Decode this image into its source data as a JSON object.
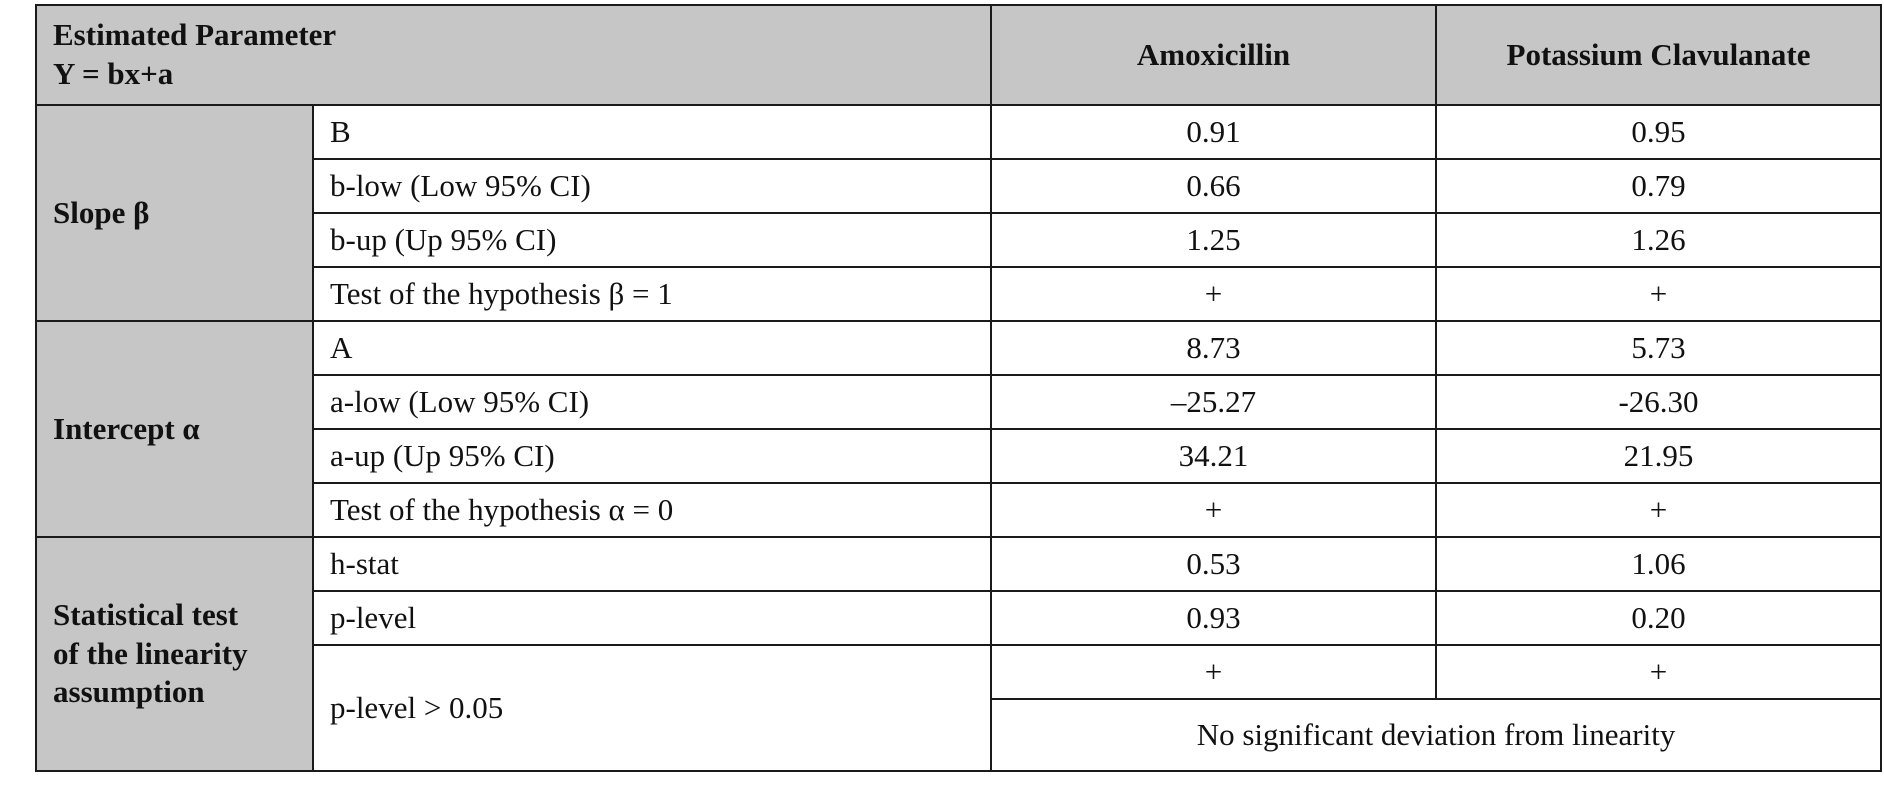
{
  "table": {
    "header": {
      "param_line1": "Estimated Parameter",
      "param_line2": "Y = bx+a",
      "col_amox": "Amoxicillin",
      "col_potassium": "Potassium Clavulanate"
    },
    "groups": [
      {
        "label": "Slope β",
        "rows": [
          {
            "name": "B",
            "amox": "0.91",
            "potassium": "0.95"
          },
          {
            "name": "b-low (Low 95% CI)",
            "amox": "0.66",
            "potassium": "0.79"
          },
          {
            "name": "b-up (Up 95% CI)",
            "amox": "1.25",
            "potassium": "1.26"
          },
          {
            "name": "Test of the hypothesis β = 1",
            "amox": "+",
            "potassium": "+"
          }
        ]
      },
      {
        "label": "Intercept α",
        "rows": [
          {
            "name": "A",
            "amox": "8.73",
            "potassium": "5.73"
          },
          {
            "name": "a-low (Low 95% CI)",
            "amox": "–25.27",
            "potassium": "-26.30"
          },
          {
            "name": "a-up (Up 95% CI)",
            "amox": "34.21",
            "potassium": "21.95"
          },
          {
            "name": "Test of the hypothesis α = 0",
            "amox": "+",
            "potassium": "+"
          }
        ]
      },
      {
        "label_line1": "Statistical test",
        "label_line2": "of the linearity",
        "label_line3": "assumption",
        "rows": [
          {
            "name": "h-stat",
            "amox": "0.53",
            "potassium": "1.06"
          },
          {
            "name": "p-level",
            "amox": "0.93",
            "potassium": "0.20"
          },
          {
            "name": "p-level > 0.05",
            "amox": "+",
            "potassium": "+",
            "conclusion": "No significant deviation from linearity"
          }
        ]
      }
    ]
  }
}
